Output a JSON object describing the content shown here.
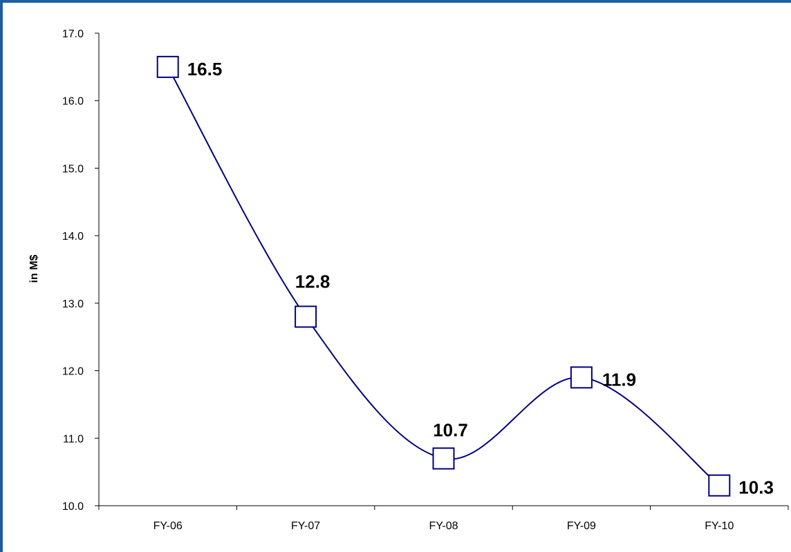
{
  "chart_data": {
    "type": "line",
    "title": "",
    "xlabel": "",
    "ylabel": "in M$",
    "categories": [
      "FY-06",
      "FY-07",
      "FY-08",
      "FY-09",
      "FY-10"
    ],
    "series": [
      {
        "values": [
          16.5,
          12.8,
          10.7,
          11.9,
          10.3
        ],
        "labels": [
          "16.5",
          "12.8",
          "10.7",
          "11.9",
          "10.3"
        ]
      }
    ],
    "ylim": [
      10.0,
      17.0
    ],
    "yticks": [
      "10.0",
      "11.0",
      "12.0",
      "13.0",
      "14.0",
      "15.0",
      "16.0",
      "17.0"
    ],
    "smooth": true,
    "grid": false,
    "legend": "none",
    "colors": {
      "line": "#000080",
      "marker_fill": "#ffffff",
      "border": "#1f5f9c"
    }
  }
}
